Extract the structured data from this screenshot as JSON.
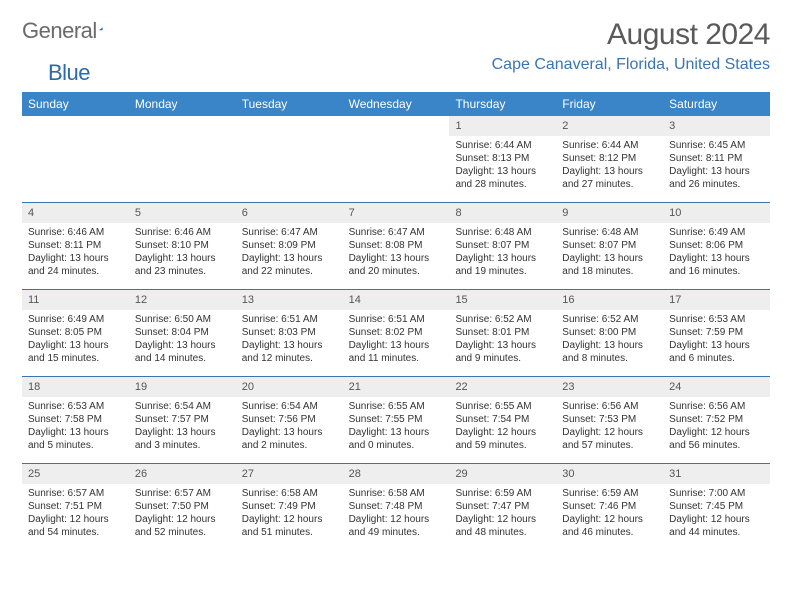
{
  "logo": {
    "text_a": "General",
    "text_b": "Blue"
  },
  "title": "August 2024",
  "location": "Cape Canaveral, Florida, United States",
  "colors": {
    "header_bg": "#3a84c8",
    "header_text": "#ffffff",
    "daynum_bg": "#eeeeee",
    "daynum_text": "#555555",
    "body_text": "#333333",
    "location_text": "#3a75b0",
    "week_border": "#3a75b0",
    "logo_gray": "#6a6a6a",
    "logo_blue": "#2d6aa8"
  },
  "day_labels": [
    "Sunday",
    "Monday",
    "Tuesday",
    "Wednesday",
    "Thursday",
    "Friday",
    "Saturday"
  ],
  "weeks": [
    [
      {
        "n": "",
        "empty": true
      },
      {
        "n": "",
        "empty": true
      },
      {
        "n": "",
        "empty": true
      },
      {
        "n": "",
        "empty": true
      },
      {
        "n": "1",
        "sr": "6:44 AM",
        "ss": "8:13 PM",
        "dl": "13 hours and 28 minutes."
      },
      {
        "n": "2",
        "sr": "6:44 AM",
        "ss": "8:12 PM",
        "dl": "13 hours and 27 minutes."
      },
      {
        "n": "3",
        "sr": "6:45 AM",
        "ss": "8:11 PM",
        "dl": "13 hours and 26 minutes."
      }
    ],
    [
      {
        "n": "4",
        "sr": "6:46 AM",
        "ss": "8:11 PM",
        "dl": "13 hours and 24 minutes."
      },
      {
        "n": "5",
        "sr": "6:46 AM",
        "ss": "8:10 PM",
        "dl": "13 hours and 23 minutes."
      },
      {
        "n": "6",
        "sr": "6:47 AM",
        "ss": "8:09 PM",
        "dl": "13 hours and 22 minutes."
      },
      {
        "n": "7",
        "sr": "6:47 AM",
        "ss": "8:08 PM",
        "dl": "13 hours and 20 minutes."
      },
      {
        "n": "8",
        "sr": "6:48 AM",
        "ss": "8:07 PM",
        "dl": "13 hours and 19 minutes."
      },
      {
        "n": "9",
        "sr": "6:48 AM",
        "ss": "8:07 PM",
        "dl": "13 hours and 18 minutes."
      },
      {
        "n": "10",
        "sr": "6:49 AM",
        "ss": "8:06 PM",
        "dl": "13 hours and 16 minutes."
      }
    ],
    [
      {
        "n": "11",
        "sr": "6:49 AM",
        "ss": "8:05 PM",
        "dl": "13 hours and 15 minutes."
      },
      {
        "n": "12",
        "sr": "6:50 AM",
        "ss": "8:04 PM",
        "dl": "13 hours and 14 minutes."
      },
      {
        "n": "13",
        "sr": "6:51 AM",
        "ss": "8:03 PM",
        "dl": "13 hours and 12 minutes."
      },
      {
        "n": "14",
        "sr": "6:51 AM",
        "ss": "8:02 PM",
        "dl": "13 hours and 11 minutes."
      },
      {
        "n": "15",
        "sr": "6:52 AM",
        "ss": "8:01 PM",
        "dl": "13 hours and 9 minutes."
      },
      {
        "n": "16",
        "sr": "6:52 AM",
        "ss": "8:00 PM",
        "dl": "13 hours and 8 minutes."
      },
      {
        "n": "17",
        "sr": "6:53 AM",
        "ss": "7:59 PM",
        "dl": "13 hours and 6 minutes."
      }
    ],
    [
      {
        "n": "18",
        "sr": "6:53 AM",
        "ss": "7:58 PM",
        "dl": "13 hours and 5 minutes."
      },
      {
        "n": "19",
        "sr": "6:54 AM",
        "ss": "7:57 PM",
        "dl": "13 hours and 3 minutes."
      },
      {
        "n": "20",
        "sr": "6:54 AM",
        "ss": "7:56 PM",
        "dl": "13 hours and 2 minutes."
      },
      {
        "n": "21",
        "sr": "6:55 AM",
        "ss": "7:55 PM",
        "dl": "13 hours and 0 minutes."
      },
      {
        "n": "22",
        "sr": "6:55 AM",
        "ss": "7:54 PM",
        "dl": "12 hours and 59 minutes."
      },
      {
        "n": "23",
        "sr": "6:56 AM",
        "ss": "7:53 PM",
        "dl": "12 hours and 57 minutes."
      },
      {
        "n": "24",
        "sr": "6:56 AM",
        "ss": "7:52 PM",
        "dl": "12 hours and 56 minutes."
      }
    ],
    [
      {
        "n": "25",
        "sr": "6:57 AM",
        "ss": "7:51 PM",
        "dl": "12 hours and 54 minutes."
      },
      {
        "n": "26",
        "sr": "6:57 AM",
        "ss": "7:50 PM",
        "dl": "12 hours and 52 minutes."
      },
      {
        "n": "27",
        "sr": "6:58 AM",
        "ss": "7:49 PM",
        "dl": "12 hours and 51 minutes."
      },
      {
        "n": "28",
        "sr": "6:58 AM",
        "ss": "7:48 PM",
        "dl": "12 hours and 49 minutes."
      },
      {
        "n": "29",
        "sr": "6:59 AM",
        "ss": "7:47 PM",
        "dl": "12 hours and 48 minutes."
      },
      {
        "n": "30",
        "sr": "6:59 AM",
        "ss": "7:46 PM",
        "dl": "12 hours and 46 minutes."
      },
      {
        "n": "31",
        "sr": "7:00 AM",
        "ss": "7:45 PM",
        "dl": "12 hours and 44 minutes."
      }
    ]
  ]
}
